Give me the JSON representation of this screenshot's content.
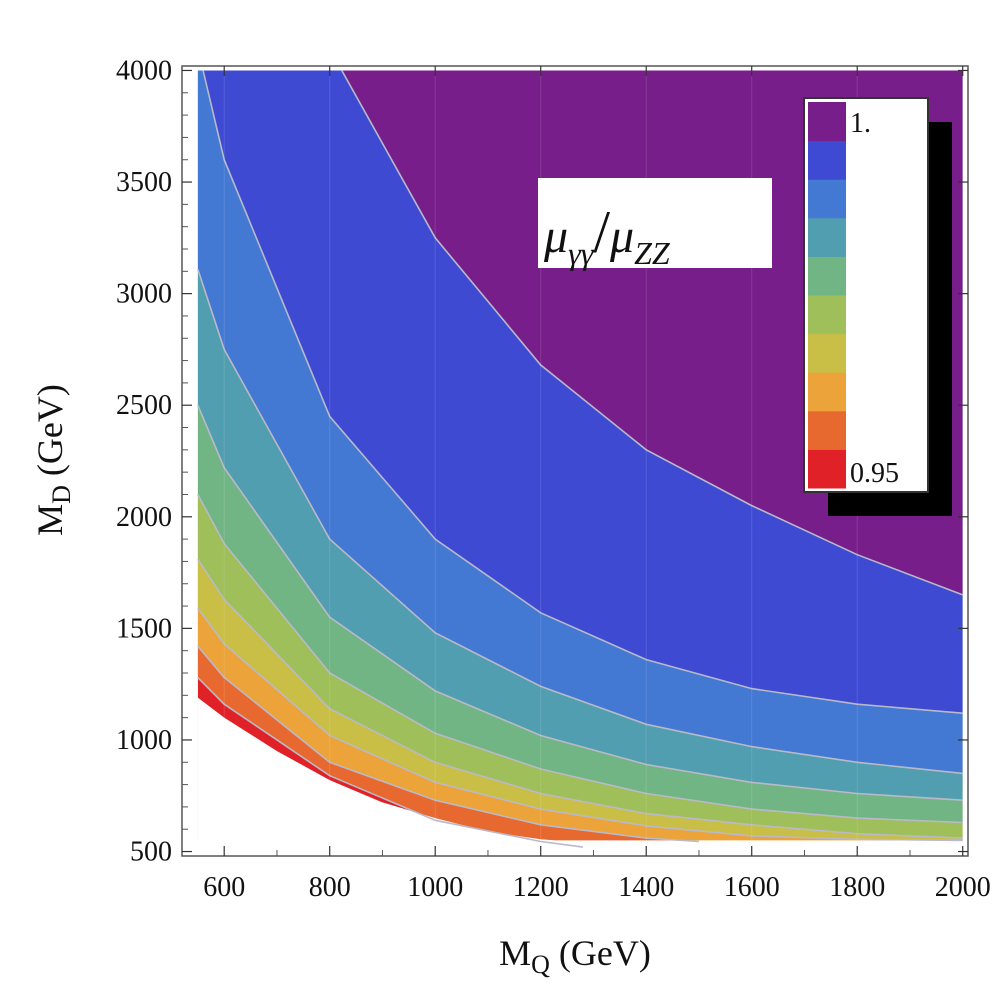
{
  "chart_data": {
    "type": "contour",
    "title": "",
    "xlabel": {
      "main": "M",
      "sub": "Q",
      "unit": " (GeV)"
    },
    "ylabel": {
      "main": "M",
      "sub": "D",
      "unit": " (GeV)"
    },
    "xlim": [
      520,
      2010
    ],
    "ylim": [
      480,
      4020
    ],
    "domain": {
      "xmin": 550,
      "xmax": 2000,
      "ymin": 550,
      "ymax": 4000
    },
    "xticks": [
      600,
      800,
      1000,
      1200,
      1400,
      1600,
      1800,
      2000
    ],
    "yticks": [
      500,
      1000,
      1500,
      2000,
      2500,
      3000,
      3500,
      4000
    ],
    "inset_label": {
      "mu": "μ",
      "sub1": "γγ",
      "slash": "/",
      "sub2": "ZZ"
    },
    "legend": {
      "placement": "top-right",
      "top_label": "1.",
      "bottom_label": "0.95",
      "colors": [
        "#e02228",
        "#e8692f",
        "#eba33a",
        "#c9bf46",
        "#9ebf59",
        "#72b584",
        "#509eb0",
        "#4378d3",
        "#3e4ad2",
        "#781e8a"
      ]
    },
    "levels": [
      0.95,
      0.955,
      0.96,
      0.965,
      0.97,
      0.975,
      0.98,
      0.985,
      0.99,
      0.995,
      1.0
    ],
    "contours": [
      {
        "level": 0.955,
        "points": [
          [
            550,
            1280
          ],
          [
            600,
            1160
          ],
          [
            800,
            840
          ],
          [
            1000,
            640
          ],
          [
            1200,
            545
          ],
          [
            1280,
            520
          ]
        ]
      },
      {
        "level": 0.96,
        "points": [
          [
            550,
            1420
          ],
          [
            600,
            1280
          ],
          [
            800,
            900
          ],
          [
            1000,
            730
          ],
          [
            1200,
            620
          ],
          [
            1400,
            560
          ],
          [
            1500,
            545
          ]
        ]
      },
      {
        "level": 0.965,
        "points": [
          [
            550,
            1590
          ],
          [
            600,
            1430
          ],
          [
            800,
            1020
          ],
          [
            1000,
            810
          ],
          [
            1200,
            690
          ],
          [
            1400,
            615
          ],
          [
            1600,
            570
          ],
          [
            1800,
            555
          ],
          [
            2000,
            550
          ]
        ]
      },
      {
        "level": 0.97,
        "points": [
          [
            550,
            1810
          ],
          [
            600,
            1630
          ],
          [
            800,
            1140
          ],
          [
            1000,
            900
          ],
          [
            1200,
            760
          ],
          [
            1400,
            670
          ],
          [
            1600,
            620
          ],
          [
            1800,
            580
          ],
          [
            2000,
            560
          ]
        ]
      },
      {
        "level": 0.975,
        "points": [
          [
            550,
            2100
          ],
          [
            600,
            1880
          ],
          [
            800,
            1300
          ],
          [
            1000,
            1030
          ],
          [
            1200,
            870
          ],
          [
            1400,
            760
          ],
          [
            1600,
            690
          ],
          [
            1800,
            650
          ],
          [
            2000,
            630
          ]
        ]
      },
      {
        "level": 0.98,
        "points": [
          [
            550,
            2500
          ],
          [
            600,
            2220
          ],
          [
            800,
            1550
          ],
          [
            1000,
            1220
          ],
          [
            1200,
            1020
          ],
          [
            1400,
            890
          ],
          [
            1600,
            810
          ],
          [
            1800,
            760
          ],
          [
            2000,
            730
          ]
        ]
      },
      {
        "level": 0.985,
        "points": [
          [
            550,
            3110
          ],
          [
            600,
            2750
          ],
          [
            800,
            1900
          ],
          [
            1000,
            1480
          ],
          [
            1200,
            1240
          ],
          [
            1400,
            1070
          ],
          [
            1600,
            970
          ],
          [
            1800,
            900
          ],
          [
            2000,
            850
          ]
        ]
      },
      {
        "level": 0.99,
        "points": [
          [
            560,
            4000
          ],
          [
            600,
            3600
          ],
          [
            800,
            2450
          ],
          [
            1000,
            1900
          ],
          [
            1200,
            1570
          ],
          [
            1400,
            1360
          ],
          [
            1600,
            1230
          ],
          [
            1800,
            1160
          ],
          [
            2000,
            1120
          ]
        ]
      },
      {
        "level": 0.995,
        "points": [
          [
            823,
            4000
          ],
          [
            1000,
            3250
          ],
          [
            1200,
            2680
          ],
          [
            1400,
            2300
          ],
          [
            1600,
            2050
          ],
          [
            1800,
            1830
          ],
          [
            2000,
            1650
          ]
        ]
      }
    ]
  }
}
